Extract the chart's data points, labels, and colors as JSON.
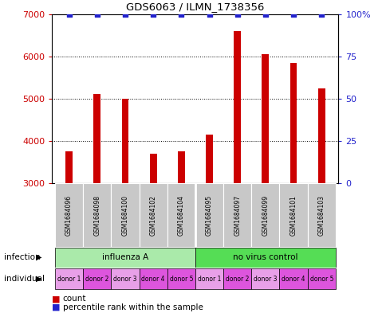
{
  "title": "GDS6063 / ILMN_1738356",
  "samples": [
    "GSM1684096",
    "GSM1684098",
    "GSM1684100",
    "GSM1684102",
    "GSM1684104",
    "GSM1684095",
    "GSM1684097",
    "GSM1684099",
    "GSM1684101",
    "GSM1684103"
  ],
  "counts": [
    3750,
    5100,
    5000,
    3700,
    3750,
    4150,
    6600,
    6050,
    5850,
    5250
  ],
  "percentile_values": [
    100,
    100,
    100,
    100,
    100,
    100,
    100,
    100,
    100,
    100
  ],
  "ylim_left": [
    3000,
    7000
  ],
  "ylim_right": [
    0,
    100
  ],
  "yticks_left": [
    3000,
    4000,
    5000,
    6000,
    7000
  ],
  "yticks_right": [
    0,
    25,
    50,
    75,
    100
  ],
  "bar_color": "#cc0000",
  "dot_color": "#2222cc",
  "infection_groups": [
    {
      "label": "influenza A",
      "start": 0,
      "end": 5,
      "color": "#aaeaaa"
    },
    {
      "label": "no virus control",
      "start": 5,
      "end": 10,
      "color": "#55dd55"
    }
  ],
  "individual_labels": [
    "donor 1",
    "donor 2",
    "donor 3",
    "donor 4",
    "donor 5",
    "donor 1",
    "donor 2",
    "donor 3",
    "donor 4",
    "donor 5"
  ],
  "individual_colors": [
    "#e8a0e8",
    "#dd55dd",
    "#e8a0e8",
    "#dd55dd",
    "#dd55dd",
    "#e8a0e8",
    "#dd55dd",
    "#e8a0e8",
    "#dd55dd",
    "#dd55dd"
  ],
  "sample_box_color": "#c8c8c8",
  "left_label_color": "#cc0000",
  "right_label_color": "#2222cc",
  "legend_count_color": "#cc0000",
  "legend_percentile_color": "#2222cc"
}
